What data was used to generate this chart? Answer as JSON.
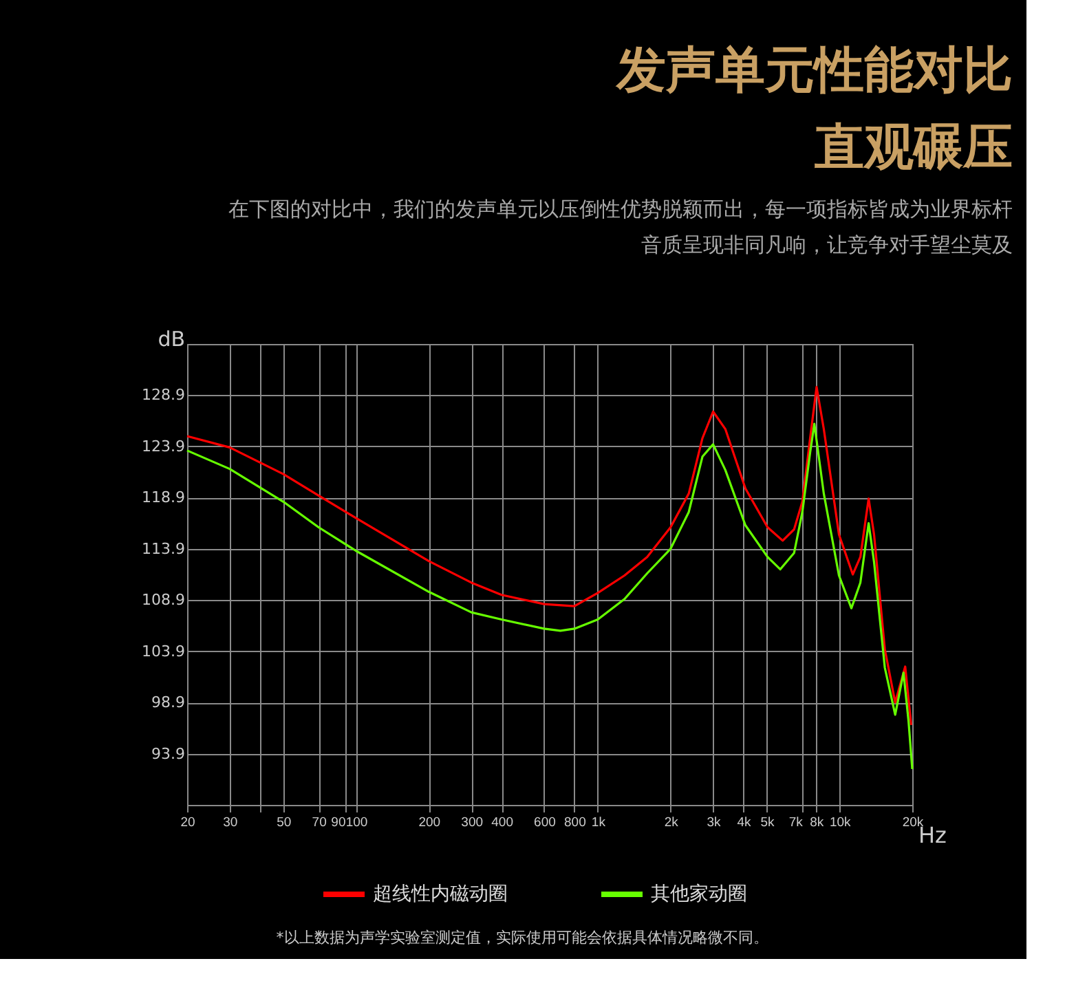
{
  "chart_data": {
    "type": "line",
    "title": "发声单元性能对比直观碾压",
    "subtitle": "在下图的对比中，我们的发声单元以压倒性优势脱颖而出，每一项指标皆成为业界标杆音质呈现非同凡响，让竞争对手望尘莫及",
    "xlabel": "Hz",
    "ylabel": "dB",
    "annotations": [
      "*以上数据为声学实验室测定值，实际使用可能会依据具体情况略微不同。"
    ],
    "log": "x",
    "grid": true,
    "legend": "bottom",
    "marker": "none",
    "line_style": "solid",
    "xlim": [
      20,
      20000
    ],
    "ylim": [
      88.9,
      133.9
    ],
    "xticks": [
      20,
      30,
      {
        "value": 40,
        "label": null
      },
      50,
      70,
      90,
      100,
      200,
      300,
      400,
      600,
      800,
      {
        "value": 1000,
        "label": "1k"
      },
      {
        "value": 2000,
        "label": "2k"
      },
      {
        "value": 3000,
        "label": "3k"
      },
      {
        "value": 4000,
        "label": "4k"
      },
      {
        "value": 5000,
        "label": "5k"
      },
      {
        "value": 7000,
        "label": "7k"
      },
      {
        "value": 8000,
        "label": "8k"
      },
      {
        "value": 10000,
        "label": "10k"
      },
      {
        "value": 20000,
        "label": "20k"
      }
    ],
    "yticks": [
      93.9,
      98.9,
      103.9,
      108.9,
      113.9,
      118.9,
      123.9,
      128.9
    ],
    "series": [
      {
        "name": "超线性内磁动圈",
        "color": "#ff0000",
        "x": [
          20,
          30,
          50,
          70,
          100,
          200,
          300,
          400,
          600,
          800,
          1000,
          1290,
          1600,
          2000,
          2380,
          2710,
          3000,
          3370,
          4080,
          5040,
          5820,
          6490,
          7020,
          7560,
          8040,
          8610,
          9950,
          11350,
          12200,
          13200,
          13900,
          15400,
          17000,
          18700,
          19800
        ],
        "values": [
          124.9,
          123.8,
          121.2,
          119.1,
          116.9,
          112.7,
          110.6,
          109.4,
          108.5,
          108.3,
          109.6,
          111.3,
          113.1,
          116.0,
          119.3,
          124.7,
          127.3,
          125.6,
          119.8,
          116.0,
          114.7,
          115.8,
          118.5,
          124.7,
          129.7,
          125.6,
          115.3,
          111.4,
          113.1,
          118.8,
          115.3,
          104.1,
          98.9,
          102.4,
          96.7
        ]
      },
      {
        "name": "其他家动圈",
        "color": "#66ff00",
        "x": [
          20,
          30,
          50,
          70,
          100,
          200,
          300,
          400,
          600,
          700,
          800,
          1000,
          1290,
          1600,
          2000,
          2380,
          2710,
          3000,
          3370,
          4080,
          5040,
          5690,
          6490,
          7020,
          7560,
          7870,
          8610,
          9950,
          11200,
          12200,
          13200,
          13900,
          15400,
          17000,
          18400,
          19300,
          20000
        ],
        "values": [
          123.5,
          121.7,
          118.5,
          116.0,
          113.7,
          109.7,
          107.7,
          107.0,
          106.1,
          105.9,
          106.1,
          107.0,
          109.0,
          111.5,
          113.9,
          117.5,
          122.9,
          124.1,
          121.6,
          116.2,
          113.1,
          111.9,
          113.5,
          117.5,
          123.3,
          126.1,
          119.3,
          111.3,
          108.1,
          110.6,
          116.4,
          112.6,
          102.3,
          97.7,
          101.8,
          97.1,
          92.4
        ]
      }
    ]
  }
}
